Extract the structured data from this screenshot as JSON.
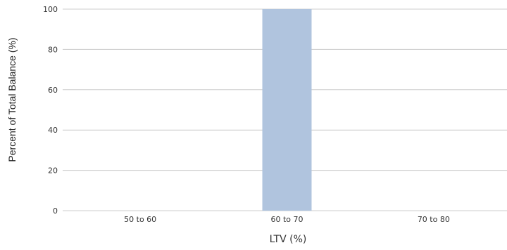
{
  "chart_data": {
    "type": "bar",
    "categories": [
      "50 to 60",
      "60 to 70",
      "70 to 80"
    ],
    "values": [
      0,
      100,
      0
    ],
    "title": "",
    "xlabel": "LTV (%)",
    "ylabel": "Percent of Total Balance (%)",
    "ylim": [
      0,
      100
    ],
    "yticks": [
      0,
      20,
      40,
      60,
      80,
      100
    ],
    "grid": true,
    "legend": "none",
    "bar_color": "#b0c4de",
    "grid_color": "#cccccc"
  }
}
